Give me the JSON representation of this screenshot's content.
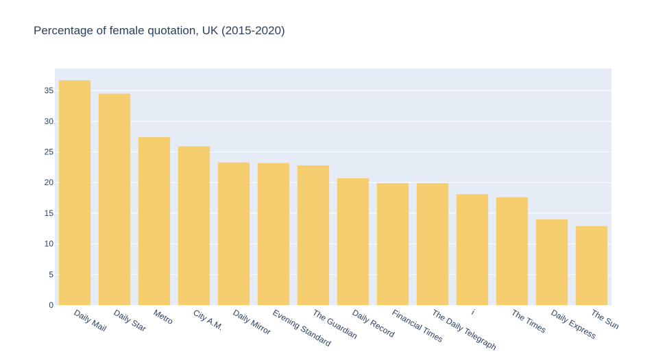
{
  "chart_data": {
    "type": "bar",
    "title": "Percentage of female quotation, UK (2015-2020)",
    "xlabel": "",
    "ylabel": "",
    "categories": [
      "Daily Mail",
      "Daily Star",
      "Metro",
      "City A.M.",
      "Daily Mirror",
      "Evening Standard",
      "The Guardian",
      "Daily Record",
      "Financial Times",
      "The Daily Telegraph",
      "i",
      "The Times",
      "Daily Express",
      "The Sun"
    ],
    "values": [
      36.7,
      34.5,
      27.4,
      25.9,
      23.3,
      23.2,
      22.8,
      20.7,
      19.9,
      19.9,
      18.1,
      17.6,
      14.0,
      12.9
    ],
    "ylim": [
      0,
      38.6
    ],
    "yticks": [
      0,
      5,
      10,
      15,
      20,
      25,
      30,
      35
    ],
    "grid": true,
    "legend": "none",
    "colors": {
      "bar": "#f6ce6f",
      "plot_bg": "#e5ecf6",
      "grid": "#ffffff",
      "text": "#2a3f5f"
    }
  }
}
